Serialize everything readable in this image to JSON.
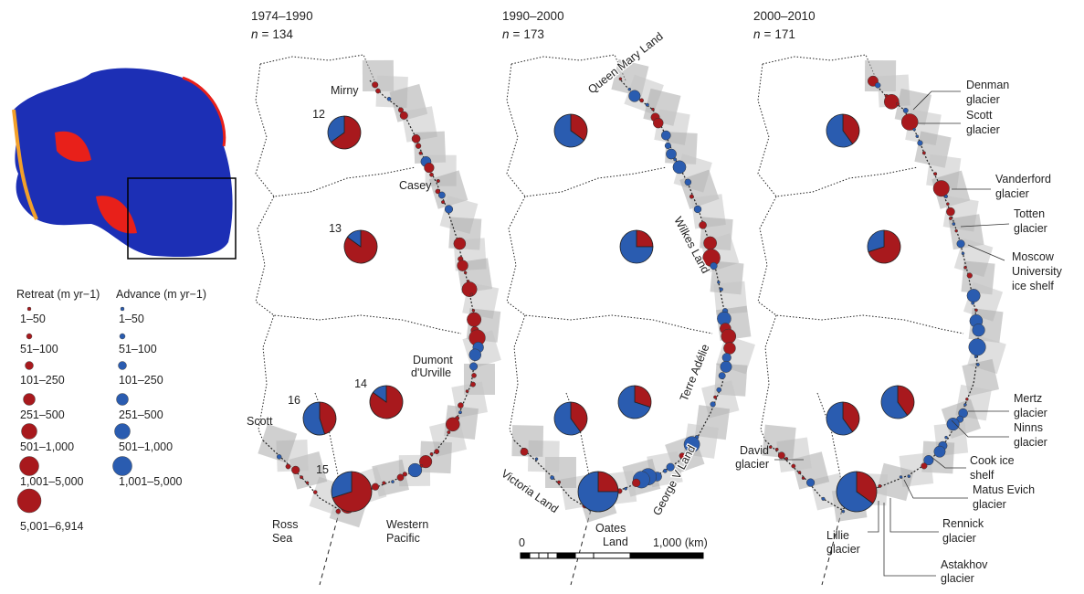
{
  "legend": {
    "retreat_title": "Retreat (m yr−1)",
    "advance_title": "Advance (m yr−1)",
    "retreat_classes": [
      "1–50",
      "51–100",
      "101–250",
      "251–500",
      "501–1,000",
      "1,001–5,000",
      "5,001–6,914"
    ],
    "advance_classes": [
      "1–50",
      "51–100",
      "101–250",
      "251–500",
      "501–1,000",
      "1,001–5,000"
    ]
  },
  "panels": [
    {
      "period": "1974–1990",
      "sample": {
        "symbol": "n",
        "relation": "=",
        "value": 134
      },
      "pies": [
        {
          "region": "12",
          "retreat_pct": 65
        },
        {
          "region": "13",
          "retreat_pct": 85
        },
        {
          "region": "14",
          "retreat_pct": 85
        },
        {
          "region": "16",
          "retreat_pct": 45
        },
        {
          "region": "15",
          "retreat_pct": 70
        }
      ],
      "labels": [
        [
          "Mirny"
        ],
        [
          "Casey"
        ],
        [
          "Dumont",
          "d'Urville"
        ],
        [
          "Scott"
        ],
        [
          "Ross",
          "Sea"
        ],
        [
          "Western",
          "Pacific"
        ]
      ]
    },
    {
      "period": "1990–2000",
      "sample": {
        "symbol": "n",
        "relation": "=",
        "value": 173
      },
      "pies": [
        {
          "retreat_pct": 35
        },
        {
          "retreat_pct": 25
        },
        {
          "retreat_pct": 30
        },
        {
          "retreat_pct": 40
        },
        {
          "retreat_pct": 25
        }
      ],
      "labels": [
        [
          "Queen Mary Land"
        ],
        [
          "Wilkes Land"
        ],
        [
          "Terre Adélie"
        ],
        [
          "George V Land"
        ],
        [
          "Oates",
          "Land"
        ],
        [
          "Victoria Land"
        ]
      ]
    },
    {
      "period": "2000–2010",
      "sample": {
        "symbol": "n",
        "relation": "=",
        "value": 171
      },
      "pies": [
        {
          "retreat_pct": 40
        },
        {
          "retreat_pct": 70
        },
        {
          "retreat_pct": 40
        },
        {
          "retreat_pct": 40
        },
        {
          "retreat_pct": 35
        }
      ],
      "labels": [
        [
          "Denman",
          "glacier"
        ],
        [
          "Scott",
          "glacier"
        ],
        [
          "Vanderford",
          "glacier"
        ],
        [
          "Totten",
          "glacier"
        ],
        [
          "Moscow",
          "University",
          "ice shelf"
        ],
        [
          "Mertz",
          "glacier"
        ],
        [
          "Ninns",
          "glacier"
        ],
        [
          "Cook ice",
          "shelf"
        ],
        [
          "Matus Evich",
          "glacier"
        ],
        [
          "Rennick",
          "glacier"
        ],
        [
          "Astakhov",
          "glacier"
        ],
        [
          "Lillie",
          "glacier"
        ],
        [
          "David",
          "glacier"
        ]
      ]
    }
  ],
  "scale_bar": {
    "start": "0",
    "end": "1,000 (km)"
  }
}
